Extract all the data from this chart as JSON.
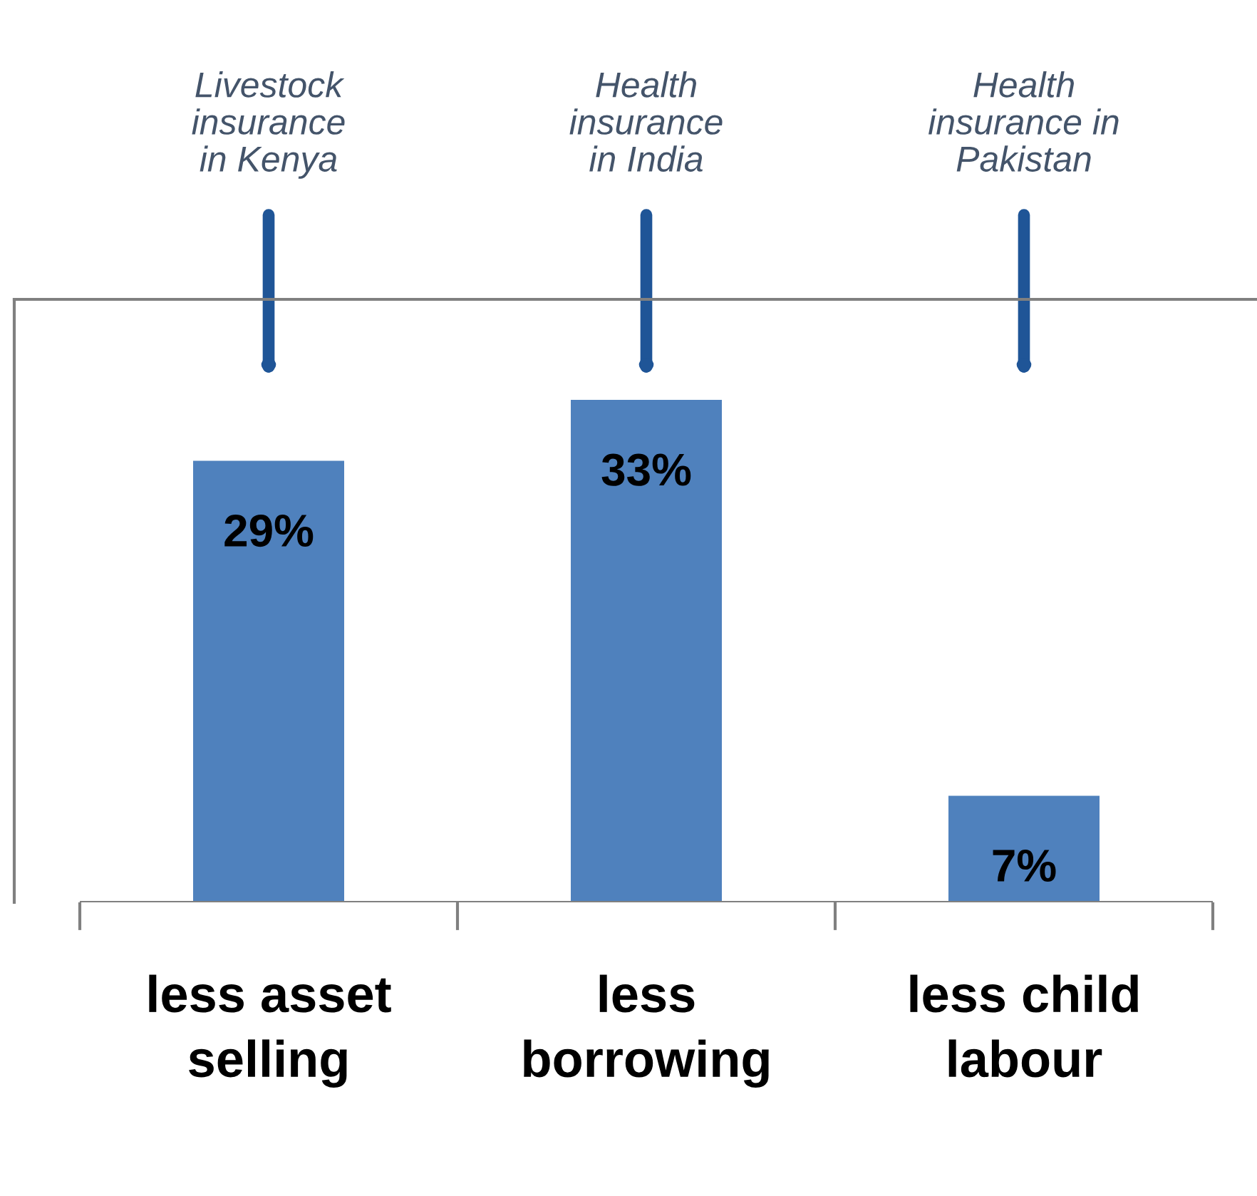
{
  "chart_data": {
    "type": "bar",
    "categories": [
      "less asset\nselling",
      "less\nborrowing",
      "less child\nlabour"
    ],
    "values": [
      29,
      33,
      7
    ],
    "color": "#4f81bd",
    "data_labels": true,
    "value_labels": [
      "29%",
      "33%",
      "7%"
    ],
    "annotations": [
      "Livestock\ninsurance\nin Kenya",
      "Health\ninsurance\nin India",
      "Health\ninsurance in\nPakistan"
    ],
    "grid": false,
    "legend": false
  }
}
